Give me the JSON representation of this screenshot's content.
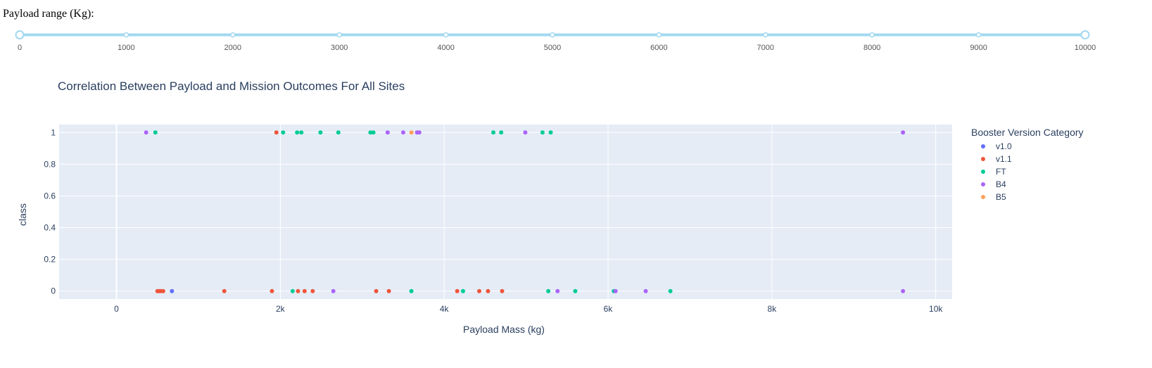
{
  "slider": {
    "label": "Payload range (Kg):",
    "min": 0,
    "max": 10000,
    "selected_range": [
      0,
      10000
    ],
    "marks": [
      "0",
      "1000",
      "2000",
      "3000",
      "4000",
      "5000",
      "6000",
      "7000",
      "8000",
      "9000",
      "10000"
    ],
    "track_color": "#a3d8f0",
    "handle_color": "#a3d8f0"
  },
  "chart_data": {
    "type": "scatter",
    "title": "Correlation Between Payload and Mission Outcomes For All Sites",
    "xlabel": "Payload Mass (kg)",
    "ylabel": "class",
    "xlim": [
      -700,
      10200
    ],
    "ylim": [
      -0.05,
      1.05
    ],
    "x_ticks": [
      0,
      2000,
      4000,
      6000,
      8000,
      10000
    ],
    "x_tick_labels": [
      "0",
      "2k",
      "4k",
      "6k",
      "8k",
      "10k"
    ],
    "y_ticks": [
      0,
      0.2,
      0.4,
      0.6,
      0.8,
      1
    ],
    "y_tick_labels": [
      "0",
      "0.2",
      "0.4",
      "0.6",
      "0.8",
      "1"
    ],
    "grid": true,
    "plot_bgcolor": "#e5ecf6",
    "legend": {
      "title": "Booster Version Category",
      "placement": "right"
    },
    "series": [
      {
        "name": "v1.0",
        "color": "#636efa",
        "points": [
          [
            677,
            0
          ]
        ]
      },
      {
        "name": "v1.1",
        "color": "#ef553b",
        "points": [
          [
            1952,
            1
          ],
          [
            500,
            0
          ],
          [
            525,
            0
          ],
          [
            540,
            0
          ],
          [
            570,
            0
          ],
          [
            1316,
            0
          ],
          [
            1898,
            0
          ],
          [
            2216,
            0
          ],
          [
            2296,
            0
          ],
          [
            2395,
            0
          ],
          [
            3170,
            0
          ],
          [
            3325,
            0
          ],
          [
            4159,
            0
          ],
          [
            4428,
            0
          ],
          [
            4535,
            0
          ],
          [
            4707,
            0
          ]
        ]
      },
      {
        "name": "FT",
        "color": "#00cc96",
        "points": [
          [
            475,
            1
          ],
          [
            2034,
            1
          ],
          [
            2205,
            1
          ],
          [
            2257,
            1
          ],
          [
            2490,
            1
          ],
          [
            2708,
            1
          ],
          [
            3100,
            1
          ],
          [
            3136,
            1
          ],
          [
            4600,
            1
          ],
          [
            4696,
            1
          ],
          [
            5200,
            1
          ],
          [
            5300,
            1
          ],
          [
            2150,
            0
          ],
          [
            3600,
            0
          ],
          [
            4230,
            0
          ],
          [
            5271,
            0
          ],
          [
            5600,
            0
          ],
          [
            6070,
            0
          ],
          [
            6761,
            0
          ]
        ]
      },
      {
        "name": "B4",
        "color": "#ab63fa",
        "points": [
          [
            362,
            1
          ],
          [
            3310,
            1
          ],
          [
            3500,
            1
          ],
          [
            3669,
            1
          ],
          [
            3696,
            1
          ],
          [
            4990,
            1
          ],
          [
            9600,
            1
          ],
          [
            2647,
            0
          ],
          [
            5384,
            0
          ],
          [
            6092,
            0
          ],
          [
            6460,
            0
          ],
          [
            9600,
            0
          ]
        ]
      },
      {
        "name": "B5",
        "color": "#ffa15a",
        "points": [
          [
            3600,
            1
          ]
        ]
      }
    ]
  }
}
